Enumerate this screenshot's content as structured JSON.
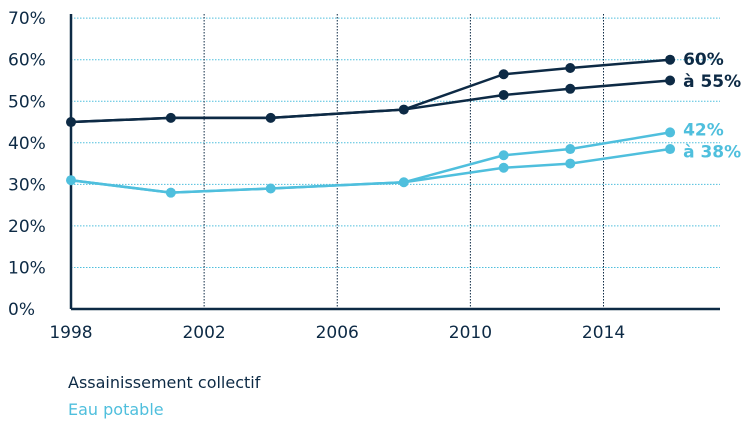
{
  "chart_data": {
    "type": "line",
    "x_ticks": [
      1998,
      2002,
      2006,
      2010,
      2014
    ],
    "y_ticks": [
      "0%",
      "10%",
      "20%",
      "30%",
      "40%",
      "50%",
      "60%",
      "70%"
    ],
    "xlim": [
      1998,
      2017.5
    ],
    "ylim": [
      0,
      71
    ],
    "grid": "dotted",
    "series": [
      {
        "name": "Assainissement collectif",
        "color": "#0d2a45",
        "x": [
          1998,
          2001,
          2004,
          2008,
          2011,
          2013,
          2016
        ],
        "upper": [
          45,
          46,
          46,
          48,
          56.5,
          58,
          60
        ],
        "lower": [
          45,
          46,
          46,
          48,
          51.5,
          53,
          55
        ],
        "end_label_top": "60%",
        "end_label_bottom": "à 55%"
      },
      {
        "name": "Eau potable",
        "color": "#4fbfdd",
        "x": [
          1998,
          2001,
          2004,
          2008,
          2011,
          2013,
          2016
        ],
        "upper": [
          31,
          28,
          29,
          30.5,
          37,
          38.5,
          42.5
        ],
        "lower": [
          31,
          28,
          29,
          30.5,
          34,
          35,
          38.5
        ],
        "end_label_top": "42%",
        "end_label_bottom": "à 38%"
      }
    ]
  }
}
